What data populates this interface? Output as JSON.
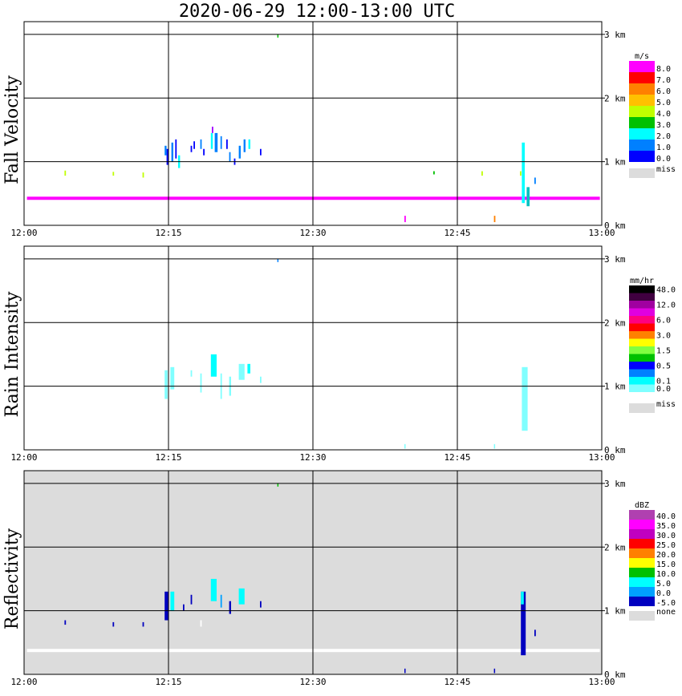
{
  "title": "2020-06-29  12:00-13:00 UTC",
  "x_ticks": [
    "12:00",
    "12:15",
    "12:30",
    "12:45",
    "13:00"
  ],
  "y_ticks": [
    "3 km",
    "2 km",
    "1 km",
    "0 km"
  ],
  "miss_label": "miss",
  "none_label": "none",
  "colors": {
    "miss": "#dcdcdc",
    "grid": "#000000",
    "bg_reflectivity": "#dcdcdc"
  },
  "panels": [
    {
      "ylabel": "Fall Velocity",
      "unit": "m/s",
      "legend": [
        {
          "label": "8.0",
          "color": "#ff00ff"
        },
        {
          "label": "7.0",
          "color": "#ff0000"
        },
        {
          "label": "6.0",
          "color": "#ff8000"
        },
        {
          "label": "5.0",
          "color": "#ffc000"
        },
        {
          "label": "4.0",
          "color": "#c0ff00"
        },
        {
          "label": "3.0",
          "color": "#00c000"
        },
        {
          "label": "2.0",
          "color": "#00ffff"
        },
        {
          "label": "1.0",
          "color": "#0080ff"
        },
        {
          "label": "0.0",
          "color": "#0000ff"
        }
      ]
    },
    {
      "ylabel": "Rain Intensity",
      "unit": "mm/hr",
      "legend": [
        {
          "label": "48.0",
          "color": "#000000"
        },
        {
          "label": "",
          "color": "#400040"
        },
        {
          "label": "12.0",
          "color": "#a000a0"
        },
        {
          "label": "",
          "color": "#e000e0"
        },
        {
          "label": "6.0",
          "color": "#ff0080"
        },
        {
          "label": "",
          "color": "#ff0000"
        },
        {
          "label": "3.0",
          "color": "#ff8000"
        },
        {
          "label": "",
          "color": "#ffff00"
        },
        {
          "label": "1.5",
          "color": "#80ff40"
        },
        {
          "label": "",
          "color": "#00c000"
        },
        {
          "label": "0.5",
          "color": "#0000ff"
        },
        {
          "label": "",
          "color": "#0080ff"
        },
        {
          "label": "0.1",
          "color": "#00ffff"
        },
        {
          "label": "0.0",
          "color": "#80ffff"
        }
      ]
    },
    {
      "ylabel": "Reflectivity",
      "unit": "dBZ",
      "legend": [
        {
          "label": "40.0",
          "color": "#b040b0"
        },
        {
          "label": "35.0",
          "color": "#ff00ff"
        },
        {
          "label": "30.0",
          "color": "#c000c0"
        },
        {
          "label": "25.0",
          "color": "#ff0000"
        },
        {
          "label": "20.0",
          "color": "#ff8000"
        },
        {
          "label": "15.0",
          "color": "#ffff00"
        },
        {
          "label": "10.0",
          "color": "#00c000"
        },
        {
          "label": "5.0",
          "color": "#00ffff"
        },
        {
          "label": "0.0",
          "color": "#00a0ff"
        },
        {
          "label": "-5.0",
          "color": "#0000c0"
        }
      ]
    }
  ],
  "chart_data": [
    {
      "type": "heatmap",
      "title": "2020-06-29  12:00-13:00 UTC",
      "ylabel": "Fall Velocity",
      "unit": "m/s",
      "xlim": [
        0,
        60
      ],
      "ylim": [
        0,
        3.2
      ],
      "points": [
        {
          "x": 0.3,
          "y": 0.4,
          "w": 59.5,
          "h": 0.05,
          "c": "#ff00ff"
        },
        {
          "x": 4.2,
          "y": 0.78,
          "w": 0.15,
          "h": 0.08,
          "c": "#c0ff00"
        },
        {
          "x": 9.2,
          "y": 0.78,
          "w": 0.15,
          "h": 0.06,
          "c": "#c0ff00"
        },
        {
          "x": 12.3,
          "y": 0.75,
          "w": 0.15,
          "h": 0.08,
          "c": "#c0ff00"
        },
        {
          "x": 14.8,
          "y": 0.95,
          "w": 0.2,
          "h": 0.25,
          "c": "#0000ff"
        },
        {
          "x": 14.6,
          "y": 1.1,
          "w": 0.2,
          "h": 0.15,
          "c": "#0080ff"
        },
        {
          "x": 15.3,
          "y": 1.0,
          "w": 0.2,
          "h": 0.3,
          "c": "#0080ff"
        },
        {
          "x": 15.7,
          "y": 1.05,
          "w": 0.15,
          "h": 0.3,
          "c": "#0000ff"
        },
        {
          "x": 16.0,
          "y": 0.9,
          "w": 0.2,
          "h": 0.2,
          "c": "#00ffff"
        },
        {
          "x": 17.3,
          "y": 1.15,
          "w": 0.15,
          "h": 0.1,
          "c": "#0000ff"
        },
        {
          "x": 17.6,
          "y": 1.2,
          "w": 0.15,
          "h": 0.12,
          "c": "#0000ff"
        },
        {
          "x": 18.3,
          "y": 1.2,
          "w": 0.15,
          "h": 0.15,
          "c": "#0080ff"
        },
        {
          "x": 18.6,
          "y": 1.1,
          "w": 0.15,
          "h": 0.1,
          "c": "#0000ff"
        },
        {
          "x": 19.4,
          "y": 1.2,
          "w": 0.2,
          "h": 0.25,
          "c": "#00ffff"
        },
        {
          "x": 19.8,
          "y": 1.15,
          "w": 0.3,
          "h": 0.3,
          "c": "#0080ff"
        },
        {
          "x": 20.4,
          "y": 1.2,
          "w": 0.15,
          "h": 0.2,
          "c": "#0080ff"
        },
        {
          "x": 19.5,
          "y": 1.45,
          "w": 0.15,
          "h": 0.1,
          "c": "#a000ff"
        },
        {
          "x": 21.0,
          "y": 1.2,
          "w": 0.15,
          "h": 0.15,
          "c": "#0000ff"
        },
        {
          "x": 21.3,
          "y": 1.0,
          "w": 0.15,
          "h": 0.15,
          "c": "#0080ff"
        },
        {
          "x": 21.8,
          "y": 0.95,
          "w": 0.15,
          "h": 0.1,
          "c": "#0000ff"
        },
        {
          "x": 22.3,
          "y": 1.05,
          "w": 0.2,
          "h": 0.2,
          "c": "#0080ff"
        },
        {
          "x": 22.8,
          "y": 1.15,
          "w": 0.2,
          "h": 0.2,
          "c": "#0080ff"
        },
        {
          "x": 23.3,
          "y": 1.2,
          "w": 0.2,
          "h": 0.15,
          "c": "#00ffff"
        },
        {
          "x": 24.5,
          "y": 1.1,
          "w": 0.15,
          "h": 0.1,
          "c": "#0000ff"
        },
        {
          "x": 26.3,
          "y": 2.95,
          "w": 0.1,
          "h": 0.05,
          "c": "#00c000"
        },
        {
          "x": 42.5,
          "y": 0.8,
          "w": 0.15,
          "h": 0.05,
          "c": "#00c000"
        },
        {
          "x": 47.5,
          "y": 0.78,
          "w": 0.15,
          "h": 0.07,
          "c": "#c0ff00"
        },
        {
          "x": 51.5,
          "y": 0.78,
          "w": 0.15,
          "h": 0.07,
          "c": "#c0ff00"
        },
        {
          "x": 39.5,
          "y": 0.05,
          "w": 0.15,
          "h": 0.1,
          "c": "#ff00ff"
        },
        {
          "x": 48.8,
          "y": 0.05,
          "w": 0.15,
          "h": 0.1,
          "c": "#ff8000"
        },
        {
          "x": 51.7,
          "y": 0.35,
          "w": 0.3,
          "h": 0.95,
          "c": "#00ffff"
        },
        {
          "x": 52.2,
          "y": 0.3,
          "w": 0.3,
          "h": 0.3,
          "c": "#00c0c0"
        },
        {
          "x": 53.0,
          "y": 0.65,
          "w": 0.15,
          "h": 0.1,
          "c": "#0080ff"
        }
      ]
    },
    {
      "type": "heatmap",
      "ylabel": "Rain Intensity",
      "unit": "mm/hr",
      "xlim": [
        0,
        60
      ],
      "ylim": [
        0,
        3.2
      ],
      "points": [
        {
          "x": 14.6,
          "y": 0.8,
          "w": 0.3,
          "h": 0.45,
          "c": "#80ffff"
        },
        {
          "x": 15.2,
          "y": 0.95,
          "w": 0.4,
          "h": 0.35,
          "c": "#80ffff"
        },
        {
          "x": 17.3,
          "y": 1.15,
          "w": 0.15,
          "h": 0.1,
          "c": "#80ffff"
        },
        {
          "x": 18.3,
          "y": 0.9,
          "w": 0.15,
          "h": 0.3,
          "c": "#80ffff"
        },
        {
          "x": 19.4,
          "y": 1.15,
          "w": 0.6,
          "h": 0.35,
          "c": "#00ffff"
        },
        {
          "x": 20.4,
          "y": 0.8,
          "w": 0.15,
          "h": 0.4,
          "c": "#80ffff"
        },
        {
          "x": 21.3,
          "y": 0.85,
          "w": 0.2,
          "h": 0.3,
          "c": "#80ffff"
        },
        {
          "x": 22.3,
          "y": 1.1,
          "w": 0.6,
          "h": 0.25,
          "c": "#80ffff"
        },
        {
          "x": 23.2,
          "y": 1.2,
          "w": 0.3,
          "h": 0.15,
          "c": "#00ffff"
        },
        {
          "x": 24.5,
          "y": 1.05,
          "w": 0.15,
          "h": 0.1,
          "c": "#80ffff"
        },
        {
          "x": 26.3,
          "y": 2.95,
          "w": 0.1,
          "h": 0.05,
          "c": "#0080ff"
        },
        {
          "x": 39.5,
          "y": 0.02,
          "w": 0.1,
          "h": 0.07,
          "c": "#80ffff"
        },
        {
          "x": 48.8,
          "y": 0.02,
          "w": 0.1,
          "h": 0.07,
          "c": "#80ffff"
        },
        {
          "x": 51.7,
          "y": 0.3,
          "w": 0.6,
          "h": 1.0,
          "c": "#80ffff"
        }
      ]
    },
    {
      "type": "heatmap",
      "ylabel": "Reflectivity",
      "unit": "dBZ",
      "xlim": [
        0,
        60
      ],
      "ylim": [
        0,
        3.2
      ],
      "points": [
        {
          "x": 0.3,
          "y": 0.35,
          "w": 59.5,
          "h": 0.05,
          "c": "#ffffff"
        },
        {
          "x": 4.2,
          "y": 0.78,
          "w": 0.15,
          "h": 0.07,
          "c": "#0000c0"
        },
        {
          "x": 9.2,
          "y": 0.75,
          "w": 0.15,
          "h": 0.07,
          "c": "#0000c0"
        },
        {
          "x": 12.3,
          "y": 0.75,
          "w": 0.15,
          "h": 0.07,
          "c": "#0000c0"
        },
        {
          "x": 14.6,
          "y": 0.85,
          "w": 0.4,
          "h": 0.45,
          "c": "#0000c0"
        },
        {
          "x": 15.2,
          "y": 1.0,
          "w": 0.4,
          "h": 0.3,
          "c": "#00ffff"
        },
        {
          "x": 16.5,
          "y": 1.0,
          "w": 0.15,
          "h": 0.1,
          "c": "#0000c0"
        },
        {
          "x": 17.3,
          "y": 1.1,
          "w": 0.15,
          "h": 0.15,
          "c": "#0000c0"
        },
        {
          "x": 18.3,
          "y": 0.75,
          "w": 0.15,
          "h": 0.1,
          "c": "#ffffff"
        },
        {
          "x": 19.4,
          "y": 1.15,
          "w": 0.6,
          "h": 0.35,
          "c": "#00ffff"
        },
        {
          "x": 20.4,
          "y": 1.05,
          "w": 0.15,
          "h": 0.2,
          "c": "#00a0ff"
        },
        {
          "x": 21.3,
          "y": 0.95,
          "w": 0.2,
          "h": 0.2,
          "c": "#0000c0"
        },
        {
          "x": 22.3,
          "y": 1.1,
          "w": 0.6,
          "h": 0.25,
          "c": "#00ffff"
        },
        {
          "x": 24.5,
          "y": 1.05,
          "w": 0.15,
          "h": 0.1,
          "c": "#0000c0"
        },
        {
          "x": 26.3,
          "y": 2.95,
          "w": 0.1,
          "h": 0.05,
          "c": "#00c000"
        },
        {
          "x": 39.5,
          "y": 0.02,
          "w": 0.1,
          "h": 0.07,
          "c": "#0000c0"
        },
        {
          "x": 48.8,
          "y": 0.02,
          "w": 0.1,
          "h": 0.07,
          "c": "#0000c0"
        },
        {
          "x": 51.6,
          "y": 0.3,
          "w": 0.5,
          "h": 1.0,
          "c": "#0000c0"
        },
        {
          "x": 51.6,
          "y": 1.1,
          "w": 0.3,
          "h": 0.2,
          "c": "#00ffff"
        },
        {
          "x": 53.0,
          "y": 0.6,
          "w": 0.15,
          "h": 0.1,
          "c": "#0000c0"
        }
      ]
    }
  ]
}
